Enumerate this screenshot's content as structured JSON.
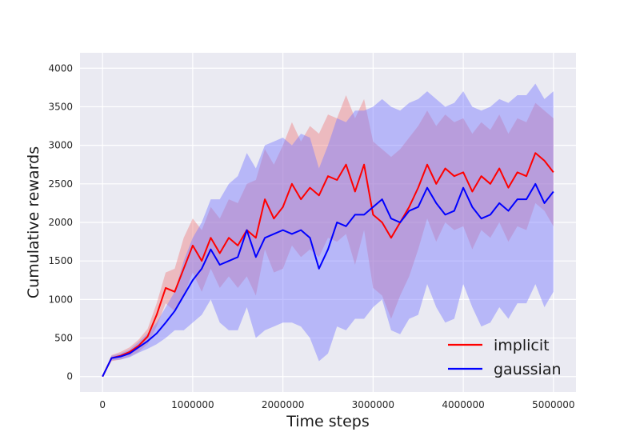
{
  "chart_data": {
    "type": "line",
    "title": "",
    "xlabel": "Time steps",
    "ylabel": "Cumulative rewards",
    "xlim": [
      -250000,
      5250000
    ],
    "ylim": [
      -200,
      4200
    ],
    "xticks": [
      0,
      1000000,
      2000000,
      3000000,
      4000000,
      5000000
    ],
    "xtick_labels": [
      "0",
      "1000000",
      "2000000",
      "3000000",
      "4000000",
      "5000000"
    ],
    "yticks": [
      0,
      500,
      1000,
      1500,
      2000,
      2500,
      3000,
      3500,
      4000
    ],
    "ytick_labels": [
      "0",
      "500",
      "1000",
      "1500",
      "2000",
      "2500",
      "3000",
      "3500",
      "4000"
    ],
    "grid": true,
    "legend_position": "bottom-right",
    "series": [
      {
        "name": "implicit",
        "color": "#ff0000",
        "band_color": "#f08080",
        "x": [
          0,
          100000,
          200000,
          300000,
          400000,
          500000,
          600000,
          700000,
          800000,
          900000,
          1000000,
          1100000,
          1200000,
          1300000,
          1400000,
          1500000,
          1600000,
          1700000,
          1800000,
          1900000,
          2000000,
          2100000,
          2200000,
          2300000,
          2400000,
          2500000,
          2600000,
          2700000,
          2800000,
          2900000,
          3000000,
          3100000,
          3200000,
          3300000,
          3400000,
          3500000,
          3600000,
          3700000,
          3800000,
          3900000,
          4000000,
          4100000,
          4200000,
          4300000,
          4400000,
          4500000,
          4600000,
          4700000,
          4800000,
          4900000,
          5000000
        ],
        "values": [
          0,
          240,
          270,
          320,
          400,
          520,
          800,
          1150,
          1100,
          1400,
          1700,
          1500,
          1800,
          1600,
          1800,
          1700,
          1900,
          1800,
          2300,
          2050,
          2200,
          2500,
          2300,
          2450,
          2350,
          2600,
          2550,
          2750,
          2400,
          2750,
          2100,
          2000,
          1800,
          2000,
          2200,
          2450,
          2750,
          2500,
          2700,
          2600,
          2650,
          2400,
          2600,
          2500,
          2700,
          2450,
          2650,
          2600,
          2900,
          2800,
          2650
        ],
        "upper": [
          0,
          280,
          320,
          380,
          480,
          620,
          950,
          1350,
          1400,
          1800,
          2050,
          1900,
          2200,
          2050,
          2300,
          2250,
          2500,
          2550,
          2950,
          2750,
          3000,
          3300,
          3050,
          3250,
          3150,
          3400,
          3350,
          3650,
          3350,
          3600,
          3050,
          2950,
          2850,
          2950,
          3100,
          3250,
          3450,
          3250,
          3400,
          3300,
          3350,
          3150,
          3300,
          3200,
          3400,
          3150,
          3350,
          3300,
          3550,
          3450,
          3350
        ],
        "lower": [
          0,
          200,
          220,
          260,
          320,
          420,
          650,
          950,
          850,
          1050,
          1350,
          1100,
          1400,
          1150,
          1300,
          1150,
          1300,
          1050,
          1650,
          1350,
          1400,
          1700,
          1550,
          1650,
          1550,
          1800,
          1750,
          1850,
          1450,
          1900,
          1150,
          1050,
          750,
          1050,
          1300,
          1650,
          2050,
          1750,
          2000,
          1900,
          1950,
          1650,
          1900,
          1800,
          2000,
          1750,
          1950,
          1900,
          2250,
          2150,
          1950
        ]
      },
      {
        "name": "gaussian",
        "color": "#0000ff",
        "band_color": "#7b7bff",
        "x": [
          0,
          100000,
          200000,
          300000,
          400000,
          500000,
          600000,
          700000,
          800000,
          900000,
          1000000,
          1100000,
          1200000,
          1300000,
          1400000,
          1500000,
          1600000,
          1700000,
          1800000,
          1900000,
          2000000,
          2100000,
          2200000,
          2300000,
          2400000,
          2500000,
          2600000,
          2700000,
          2800000,
          2900000,
          3000000,
          3100000,
          3200000,
          3300000,
          3400000,
          3500000,
          3600000,
          3700000,
          3800000,
          3900000,
          4000000,
          4100000,
          4200000,
          4300000,
          4400000,
          4500000,
          4600000,
          4700000,
          4800000,
          4900000,
          5000000
        ],
        "values": [
          0,
          240,
          260,
          300,
          380,
          460,
          560,
          700,
          850,
          1050,
          1250,
          1400,
          1650,
          1450,
          1500,
          1550,
          1900,
          1550,
          1800,
          1850,
          1900,
          1850,
          1900,
          1800,
          1400,
          1650,
          2000,
          1950,
          2100,
          2100,
          2200,
          2300,
          2050,
          2000,
          2150,
          2200,
          2450,
          2250,
          2100,
          2150,
          2450,
          2200,
          2050,
          2100,
          2250,
          2150,
          2300,
          2300,
          2500,
          2250,
          2400
        ],
        "upper": [
          0,
          270,
          300,
          350,
          450,
          560,
          700,
          900,
          1100,
          1500,
          1800,
          2000,
          2300,
          2300,
          2500,
          2600,
          2900,
          2700,
          3000,
          3050,
          3100,
          3000,
          3150,
          3100,
          2700,
          3000,
          3350,
          3300,
          3450,
          3450,
          3500,
          3600,
          3500,
          3450,
          3550,
          3600,
          3700,
          3600,
          3500,
          3550,
          3700,
          3500,
          3450,
          3500,
          3600,
          3550,
          3650,
          3650,
          3800,
          3600,
          3700
        ],
        "lower": [
          0,
          210,
          220,
          250,
          310,
          360,
          420,
          500,
          600,
          600,
          700,
          800,
          1000,
          700,
          600,
          600,
          900,
          500,
          600,
          650,
          700,
          700,
          650,
          500,
          200,
          300,
          650,
          600,
          750,
          750,
          900,
          1000,
          600,
          550,
          750,
          800,
          1200,
          900,
          700,
          750,
          1200,
          900,
          650,
          700,
          900,
          750,
          950,
          950,
          1200,
          900,
          1100
        ]
      }
    ]
  }
}
